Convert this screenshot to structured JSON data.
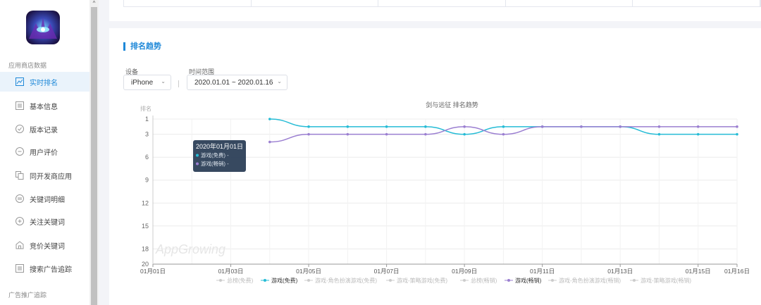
{
  "sidebar": {
    "section1": "应用商店数据",
    "items": [
      {
        "label": "实时排名",
        "icon": "trend-icon",
        "active": true
      },
      {
        "label": "基本信息",
        "icon": "list-icon"
      },
      {
        "label": "版本记录",
        "icon": "check-icon"
      },
      {
        "label": "用户评价",
        "icon": "comment-icon"
      },
      {
        "label": "同开发商应用",
        "icon": "copy-icon"
      },
      {
        "label": "关键词明细",
        "icon": "keyword-icon"
      },
      {
        "label": "关注关键词",
        "icon": "plus-circle-icon"
      },
      {
        "label": "竞价关键词",
        "icon": "bid-icon"
      },
      {
        "label": "搜索广告追踪",
        "icon": "table-icon"
      }
    ],
    "section2": "广告推广追踪"
  },
  "scroll": {
    "up_arrow": "^"
  },
  "panel": {
    "title": "排名趋势",
    "device_label": "设备",
    "device_value": "iPhone",
    "time_label": "时间范围",
    "time_value": "2020.01.01 ~ 2020.01.16"
  },
  "colors": {
    "accent": "#1e88d8",
    "free": "#26bcd6",
    "paid": "#9b7fd1",
    "grid": "#e8e8e8"
  },
  "chart_data": {
    "type": "line",
    "title": "剑与远征 排名趋势",
    "ylabel": "排名",
    "y_inverted": true,
    "ylim": [
      1,
      20
    ],
    "yticks": [
      1,
      3,
      6,
      9,
      12,
      15,
      18,
      20
    ],
    "x": [
      "01月01日",
      "01月02日",
      "01月03日",
      "01月04日",
      "01月05日",
      "01月06日",
      "01月07日",
      "01月08日",
      "01月09日",
      "01月10日",
      "01月11日",
      "01月12日",
      "01月13日",
      "01月14日",
      "01月15日",
      "01月16日"
    ],
    "xticks": [
      "01月01日",
      "01月03日",
      "01月05日",
      "01月07日",
      "01月09日",
      "01月11日",
      "01月13日",
      "01月15日",
      "01月16日"
    ],
    "series": [
      {
        "name": "游戏(免费)",
        "color": "#26bcd6",
        "values": [
          null,
          null,
          null,
          1,
          2,
          2,
          2,
          2,
          3,
          2,
          2,
          2,
          2,
          3,
          3,
          3
        ]
      },
      {
        "name": "游戏(畅销)",
        "color": "#9b7fd1",
        "values": [
          null,
          null,
          null,
          4,
          3,
          3,
          3,
          3,
          2,
          3,
          2,
          2,
          2,
          2,
          2,
          2
        ]
      }
    ],
    "legend": [
      "总榜(免费)",
      "游戏(免费)",
      "游戏-角色扮演游戏(免费)",
      "游戏-策略游戏(免费)",
      "总榜(畅销)",
      "游戏(畅销)",
      "游戏-角色扮演游戏(畅销)",
      "游戏-策略游戏(畅销)"
    ],
    "legend_active": [
      "游戏(免费)",
      "游戏(畅销)"
    ],
    "legend_position": "bottom",
    "watermark": "AppGrowing",
    "tooltip": {
      "title": "2020年01月01日",
      "items": [
        "游戏(免费)  -",
        "游戏(畅销)  -"
      ]
    }
  }
}
